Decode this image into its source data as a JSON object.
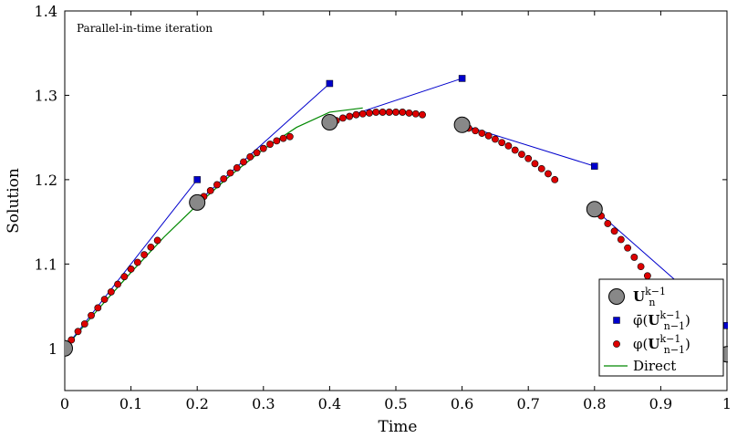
{
  "chart_data": {
    "type": "scatter",
    "annotation": "Parallel-in-time iteration",
    "xlabel": "Time",
    "ylabel": "Solution",
    "xlim": [
      0,
      1
    ],
    "ylim": [
      0.95,
      1.4
    ],
    "xticks": [
      0,
      0.1,
      0.2,
      0.3,
      0.4,
      0.5,
      0.6,
      0.7,
      0.8,
      0.9,
      1
    ],
    "xtick_labels": [
      "0",
      "0.1",
      "0.2",
      "0.3",
      "0.4",
      "0.5",
      "0.6",
      "0.7",
      "0.8",
      "0.9",
      "1"
    ],
    "yticks": [
      1.0,
      1.1,
      1.2,
      1.3,
      1.4
    ],
    "ytick_labels": [
      "1",
      "1.1",
      "1.2",
      "1.3",
      "1.4"
    ],
    "grid": false,
    "legend_position": "bottom-right",
    "colors": {
      "coarse_points": "#888888",
      "coarse_prop": "#0000cc",
      "fine_prop": "#dd0000",
      "direct": "#008800"
    },
    "series": [
      {
        "name": "U_n^{k-1}",
        "legend_base": "U",
        "legend_sub": "n",
        "legend_sup": "k−1",
        "kind": "markers-large-circle",
        "x": [
          0,
          0.2,
          0.4,
          0.6,
          0.8,
          1.0
        ],
        "y": [
          1.0,
          1.173,
          1.268,
          1.265,
          1.165,
          0.993
        ]
      },
      {
        "name": "φ̄(U_{n-1}^{k-1})",
        "legend_prefix": "φ̄(",
        "legend_base": "U",
        "legend_sub": "n−1",
        "legend_sup": "k−1",
        "legend_suffix": ")",
        "kind": "segments-square",
        "segments": [
          {
            "x": [
              0,
              0.2
            ],
            "y": [
              1.0,
              1.2
            ]
          },
          {
            "x": [
              0.2,
              0.4
            ],
            "y": [
              1.173,
              1.314
            ]
          },
          {
            "x": [
              0.4,
              0.6
            ],
            "y": [
              1.268,
              1.32
            ]
          },
          {
            "x": [
              0.6,
              0.8
            ],
            "y": [
              1.265,
              1.216
            ]
          },
          {
            "x": [
              0.8,
              1.0
            ],
            "y": [
              1.165,
              1.027
            ]
          }
        ]
      },
      {
        "name": "φ(U_{n-1}^{k-1})",
        "legend_prefix": "φ(",
        "legend_base": "U",
        "legend_sub": "n−1",
        "legend_sup": "k−1",
        "legend_suffix": ")",
        "kind": "markers-small-circle",
        "x": [
          0,
          0.01,
          0.02,
          0.03,
          0.04,
          0.05,
          0.06,
          0.07,
          0.08,
          0.09,
          0.1,
          0.11,
          0.12,
          0.13,
          0.14,
          0.21,
          0.22,
          0.23,
          0.24,
          0.25,
          0.26,
          0.27,
          0.28,
          0.29,
          0.3,
          0.31,
          0.32,
          0.33,
          0.34,
          0.41,
          0.42,
          0.43,
          0.44,
          0.45,
          0.46,
          0.47,
          0.48,
          0.49,
          0.5,
          0.51,
          0.52,
          0.53,
          0.54,
          0.61,
          0.62,
          0.63,
          0.64,
          0.65,
          0.66,
          0.67,
          0.68,
          0.69,
          0.7,
          0.71,
          0.72,
          0.73,
          0.74,
          0.81,
          0.82,
          0.83,
          0.84,
          0.85,
          0.86,
          0.87,
          0.88,
          0.89,
          0.9
        ],
        "y": [
          1.0,
          1.01,
          1.02,
          1.029,
          1.039,
          1.048,
          1.058,
          1.067,
          1.076,
          1.085,
          1.094,
          1.102,
          1.111,
          1.12,
          1.128,
          1.18,
          1.187,
          1.194,
          1.201,
          1.208,
          1.214,
          1.221,
          1.227,
          1.232,
          1.237,
          1.242,
          1.246,
          1.249,
          1.251,
          1.27,
          1.273,
          1.275,
          1.277,
          1.278,
          1.279,
          1.28,
          1.28,
          1.28,
          1.28,
          1.28,
          1.279,
          1.278,
          1.277,
          1.261,
          1.258,
          1.255,
          1.252,
          1.248,
          1.244,
          1.24,
          1.235,
          1.23,
          1.225,
          1.219,
          1.213,
          1.207,
          1.2,
          1.157,
          1.148,
          1.139,
          1.129,
          1.119,
          1.108,
          1.097,
          1.086,
          1.074,
          1.062
        ]
      },
      {
        "name": "Direct",
        "kind": "line",
        "x": [
          0,
          0.05,
          0.1,
          0.15,
          0.2,
          0.25,
          0.3,
          0.35,
          0.4,
          0.45
        ],
        "y": [
          1.0,
          1.046,
          1.09,
          1.132,
          1.17,
          1.205,
          1.236,
          1.262,
          1.28,
          1.285
        ]
      }
    ]
  }
}
